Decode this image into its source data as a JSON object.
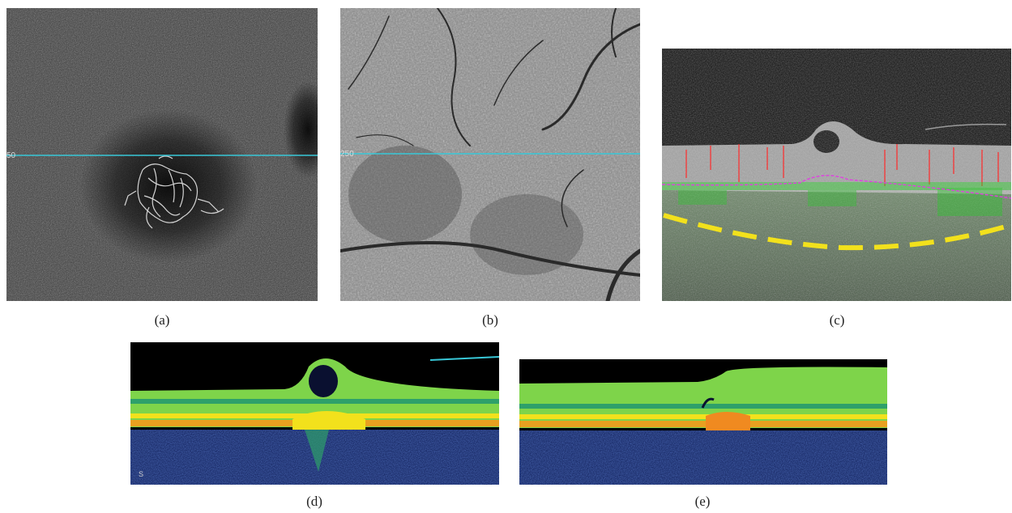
{
  "figure": {
    "panels": [
      {
        "id": "a",
        "caption": "(a)",
        "scan_line_label": "50",
        "kind": "OCT angiography en-face"
      },
      {
        "id": "b",
        "caption": "(b)",
        "scan_line_label": "250",
        "kind": "en-face structural"
      },
      {
        "id": "c",
        "caption": "(c)",
        "kind": "B-scan with flow overlay"
      },
      {
        "id": "d",
        "caption": "(d)",
        "corner_mark": "S",
        "kind": "color-coded B-scan"
      },
      {
        "id": "e",
        "caption": "(e)",
        "kind": "color-coded B-scan"
      }
    ],
    "colors": {
      "scan_line": "#38c8d8",
      "flow_red": "#ff2a2a",
      "flow_green": "#2ec42e",
      "segmentation_magenta": "#e040e0",
      "choroid_boundary_yellow": "#f2e11c"
    }
  }
}
